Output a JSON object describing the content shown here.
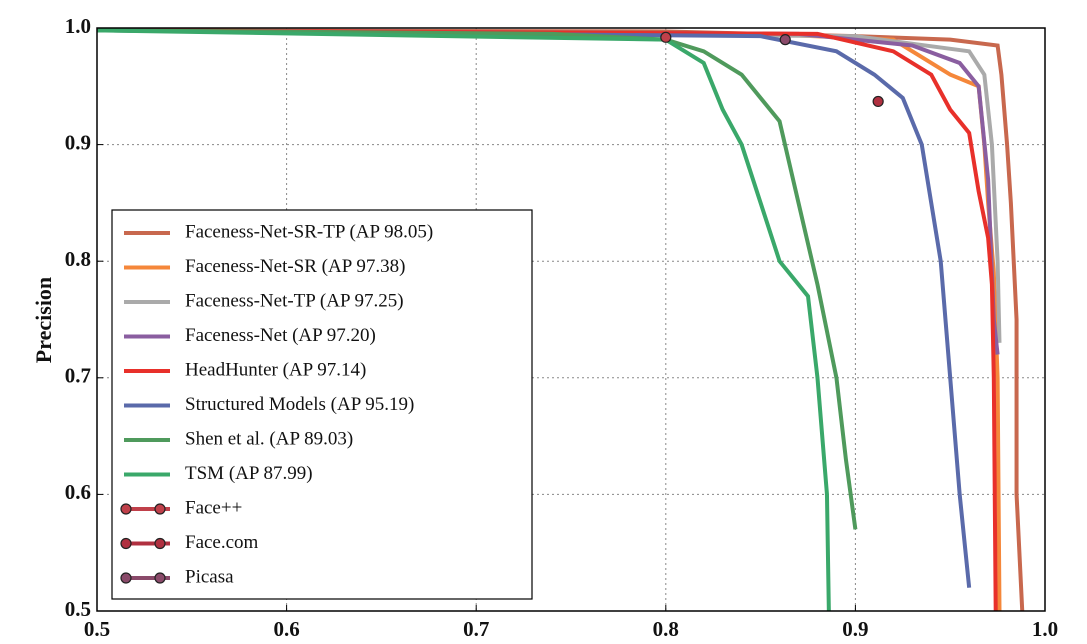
{
  "chart_data": {
    "type": "line",
    "y_label": "Precision",
    "xlim": [
      0.5,
      1
    ],
    "ylim": [
      0.5,
      1
    ],
    "xticks": [
      0.5,
      0.6,
      0.7,
      0.8,
      0.9,
      {
        "value": 1,
        "label": "1.0"
      }
    ],
    "yticks": [
      0.5,
      0.6,
      0.7,
      0.8,
      0.9,
      {
        "value": 1,
        "label": "1.0"
      }
    ],
    "grid": true,
    "legend": "lower left",
    "series": [
      {
        "name": "Faceness-Net-SR-TP (AP 98.05)",
        "color": "#c8684e",
        "style": "line",
        "x": [
          0.5,
          0.8,
          0.9,
          0.95,
          0.975,
          0.977,
          0.98,
          0.982,
          0.985,
          0.985,
          0.988
        ],
        "values": [
          0.998,
          0.997,
          0.993,
          0.99,
          0.985,
          0.96,
          0.9,
          0.85,
          0.75,
          0.6,
          0.5
        ]
      },
      {
        "name": "Faceness-Net-SR (AP 97.38)",
        "color": "#f5873a",
        "style": "line",
        "x": [
          0.5,
          0.85,
          0.92,
          0.95,
          0.965,
          0.968,
          0.97,
          0.973,
          0.975,
          0.976
        ],
        "values": [
          0.998,
          0.995,
          0.99,
          0.96,
          0.95,
          0.9,
          0.85,
          0.79,
          0.7,
          0.5
        ]
      },
      {
        "name": "Faceness-Net-TP (AP 97.25)",
        "color": "#aaaaaa",
        "style": "line",
        "x": [
          0.5,
          0.9,
          0.96,
          0.968,
          0.972,
          0.975,
          0.976
        ],
        "values": [
          0.998,
          0.993,
          0.98,
          0.96,
          0.9,
          0.8,
          0.73
        ]
      },
      {
        "name": "Faceness-Net (AP 97.20)",
        "color": "#8a5ea0",
        "style": "line",
        "x": [
          0.5,
          0.87,
          0.93,
          0.955,
          0.965,
          0.97,
          0.973,
          0.975
        ],
        "values": [
          0.998,
          0.995,
          0.985,
          0.97,
          0.95,
          0.87,
          0.75,
          0.72
        ]
      },
      {
        "name": "HeadHunter (AP 97.14)",
        "color": "#e8302a",
        "style": "line",
        "x": [
          0.5,
          0.88,
          0.92,
          0.94,
          0.95,
          0.96,
          0.965,
          0.97,
          0.972,
          0.973,
          0.974
        ],
        "values": [
          0.998,
          0.995,
          0.98,
          0.96,
          0.93,
          0.91,
          0.86,
          0.82,
          0.78,
          0.7,
          0.5
        ]
      },
      {
        "name": "Structured Models (AP 95.19)",
        "color": "#5a6aaa",
        "style": "line",
        "x": [
          0.5,
          0.85,
          0.89,
          0.91,
          0.925,
          0.935,
          0.94,
          0.945,
          0.95,
          0.955,
          0.96
        ],
        "values": [
          0.998,
          0.993,
          0.98,
          0.96,
          0.94,
          0.9,
          0.85,
          0.8,
          0.7,
          0.6,
          0.52
        ]
      },
      {
        "name": "Shen et al. (AP 89.03)",
        "color": "#4f9a5c",
        "style": "line",
        "x": [
          0.5,
          0.74,
          0.8,
          0.82,
          0.84,
          0.86,
          0.87,
          0.88,
          0.89,
          0.895,
          0.9
        ],
        "values": [
          0.998,
          0.995,
          0.99,
          0.98,
          0.96,
          0.92,
          0.85,
          0.78,
          0.7,
          0.63,
          0.57
        ]
      },
      {
        "name": "TSM (AP 87.99)",
        "color": "#3aa86a",
        "style": "line",
        "x": [
          0.5,
          0.8,
          0.82,
          0.83,
          0.84,
          0.85,
          0.86,
          0.875,
          0.88,
          0.885,
          0.886
        ],
        "values": [
          0.998,
          0.99,
          0.97,
          0.93,
          0.9,
          0.85,
          0.8,
          0.77,
          0.7,
          0.6,
          0.5
        ]
      },
      {
        "name": "Face++",
        "color": "#c0404a",
        "style": "marker",
        "x": [
          0.8
        ],
        "values": [
          0.992
        ]
      },
      {
        "name": "Face.com",
        "color": "#b03040",
        "style": "marker",
        "x": [
          0.912
        ],
        "values": [
          0.937
        ]
      },
      {
        "name": "Picasa",
        "color": "#8a4a6a",
        "style": "marker",
        "x": [
          0.863
        ],
        "values": [
          0.99
        ]
      }
    ]
  }
}
